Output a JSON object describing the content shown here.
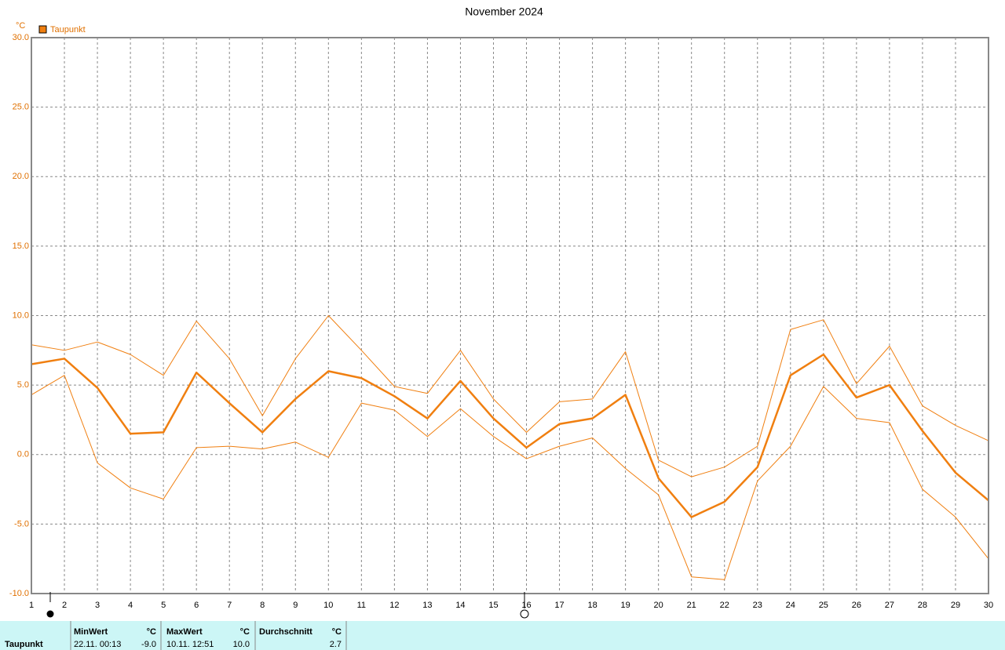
{
  "chart_data": {
    "type": "line",
    "title": "November 2024",
    "y_unit": "°C",
    "x": [
      1,
      2,
      3,
      4,
      5,
      6,
      7,
      8,
      9,
      10,
      11,
      12,
      13,
      14,
      15,
      16,
      17,
      18,
      19,
      20,
      21,
      22,
      23,
      24,
      25,
      26,
      27,
      28,
      29,
      30
    ],
    "xlim": [
      1,
      30
    ],
    "xticks": [
      1,
      2,
      3,
      4,
      5,
      6,
      7,
      8,
      9,
      10,
      11,
      12,
      13,
      14,
      15,
      16,
      17,
      18,
      19,
      20,
      21,
      22,
      23,
      24,
      25,
      26,
      27,
      28,
      29,
      30
    ],
    "ylim": [
      -10,
      30
    ],
    "yticks": [
      {
        "value": -10,
        "label": "-10.0"
      },
      {
        "value": -5,
        "label": "-5.0"
      },
      {
        "value": 0,
        "label": "0.0"
      },
      {
        "value": 5,
        "label": "5.0"
      },
      {
        "value": 10,
        "label": "10.0"
      },
      {
        "value": 15,
        "label": "15.0"
      },
      {
        "value": 20,
        "label": "20.0"
      },
      {
        "value": 25,
        "label": "25.0"
      },
      {
        "value": 30,
        "label": "30.0"
      }
    ],
    "grid": true,
    "legend": "top-left",
    "series": [
      {
        "name": "Taupunkt",
        "color": "#f07f10",
        "width": 2.5,
        "values": [
          6.5,
          6.9,
          4.8,
          1.5,
          1.6,
          5.9,
          3.7,
          1.6,
          4.0,
          6.0,
          5.5,
          4.2,
          2.6,
          5.3,
          2.6,
          0.5,
          2.2,
          2.6,
          4.3,
          -1.7,
          -4.5,
          -3.4,
          -0.9,
          5.7,
          7.2,
          4.1,
          5.0,
          1.7,
          -1.3,
          -3.3
        ]
      },
      {
        "color": "#f07f10",
        "width": 1,
        "values": [
          7.9,
          7.5,
          8.1,
          7.2,
          5.7,
          9.6,
          6.9,
          2.8,
          6.9,
          10.0,
          7.5,
          4.9,
          4.4,
          7.5,
          4.0,
          1.6,
          3.8,
          4.0,
          7.4,
          -0.4,
          -1.6,
          -0.9,
          0.6,
          9.0,
          9.7,
          5.1,
          7.8,
          3.5,
          2.1,
          1.0
        ]
      },
      {
        "color": "#f07f10",
        "width": 1,
        "values": [
          4.3,
          5.7,
          -0.6,
          -2.4,
          -3.2,
          0.5,
          0.6,
          0.4,
          0.9,
          -0.2,
          3.7,
          3.2,
          1.3,
          3.3,
          1.3,
          -0.3,
          0.6,
          1.2,
          -1.0,
          -2.9,
          -8.8,
          -9.0,
          -1.9,
          0.6,
          4.9,
          2.6,
          2.3,
          -2.5,
          -4.5,
          -7.5
        ]
      }
    ]
  },
  "summary": {
    "columns": [
      {
        "header": "MinWert",
        "unit": "°C",
        "time": "22.11.  00:13",
        "value": "-9.0"
      },
      {
        "header": "MaxWert",
        "unit": "°C",
        "time": "10.11.  12:51",
        "value": "10.0"
      },
      {
        "header": "Durchschnitt",
        "unit": "°C",
        "value": "2.7"
      }
    ]
  }
}
